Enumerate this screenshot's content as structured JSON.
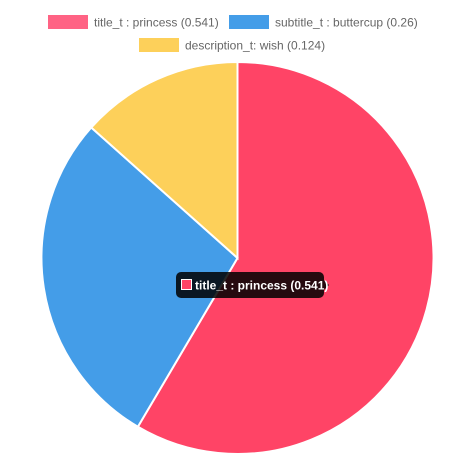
{
  "chart_data": {
    "type": "pie",
    "categories": [
      "title_t : princess",
      "subtitle_t : buttercup",
      "description_t: wish"
    ],
    "values": [
      0.541,
      0.26,
      0.124
    ],
    "legend": [
      "title_t : princess (0.541)",
      "subtitle_t : buttercup (0.26)",
      "description_t: wish (0.124)"
    ],
    "colors": [
      "#ff4466",
      "#449de8",
      "#fdd05a"
    ],
    "legend_position": "top",
    "tooltip": {
      "text": "title_t : princess (0.541)",
      "color": "#ff4466"
    }
  }
}
